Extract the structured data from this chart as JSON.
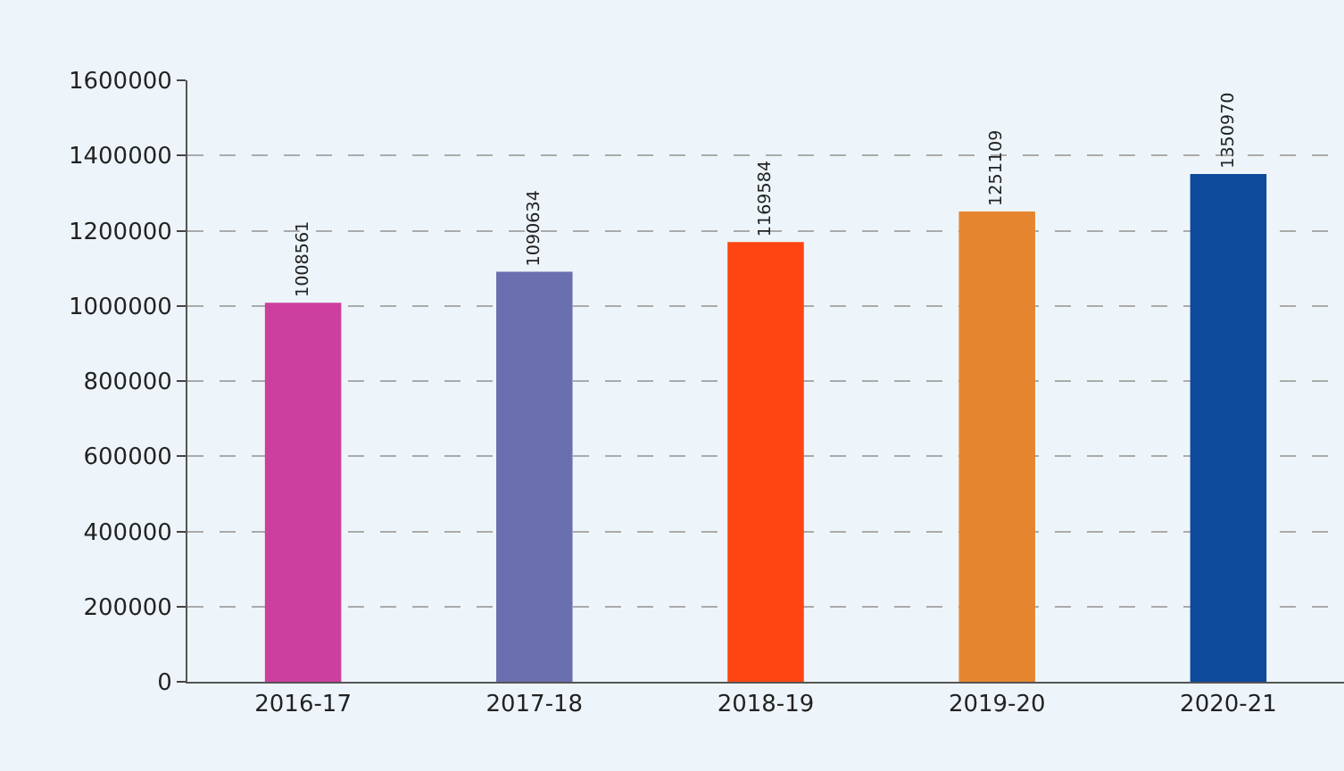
{
  "chart_data": {
    "type": "bar",
    "categories": [
      "2016-17",
      "2017-18",
      "2018-19",
      "2019-20",
      "2020-21"
    ],
    "values": [
      1008561,
      1090634,
      1169584,
      1251109,
      1350970
    ],
    "colors": [
      "#cc3f9e",
      "#6a6fb0",
      "#ff4512",
      "#e6852f",
      "#0d4a9c"
    ],
    "ylim": [
      0,
      1600000
    ],
    "yticks": [
      0,
      200000,
      400000,
      600000,
      800000,
      1000000,
      1200000,
      1400000,
      1600000
    ],
    "grid": "y",
    "data_labels": true
  }
}
